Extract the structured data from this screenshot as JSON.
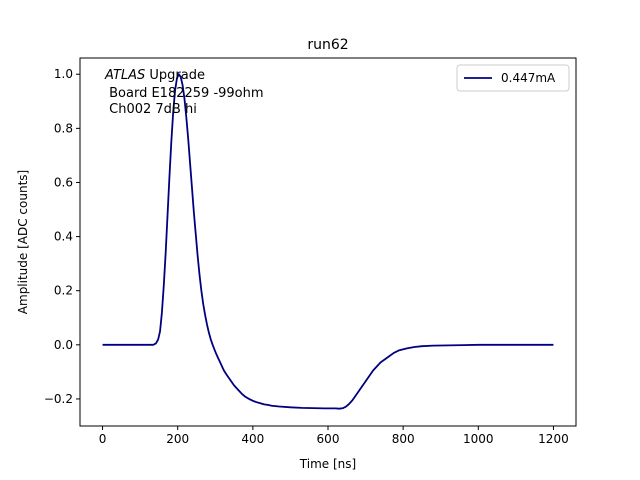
{
  "chart_data": {
    "type": "line",
    "title": "run62",
    "xlabel": "Time [ns]",
    "ylabel": "Amplitude [ADC counts]",
    "xlim": [
      -60,
      1260
    ],
    "ylim": [
      -0.3,
      1.06
    ],
    "xticks": [
      0,
      200,
      400,
      600,
      800,
      1000,
      1200
    ],
    "yticks": [
      -0.2,
      0.0,
      0.2,
      0.4,
      0.6,
      0.8,
      1.0
    ],
    "xtick_labels": [
      "0",
      "200",
      "400",
      "600",
      "800",
      "1000",
      "1200"
    ],
    "ytick_labels": [
      "−0.2",
      "0.0",
      "0.2",
      "0.4",
      "0.6",
      "0.8",
      "1.0"
    ],
    "grid": false,
    "legend_position": "top-right",
    "annotation": {
      "line1_italic": "ATLAS",
      "line1_rest": " Upgrade",
      "line2": " Board E182259 -99ohm",
      "line3": " Ch002 7dB hi"
    },
    "series": [
      {
        "name": "0.447mA",
        "color": "#000080",
        "x": [
          0,
          100,
          135,
          142,
          148,
          153,
          158,
          163,
          168,
          173,
          178,
          183,
          188,
          193,
          198,
          203,
          208,
          213,
          218,
          223,
          228,
          233,
          238,
          243,
          248,
          253,
          258,
          263,
          268,
          273,
          278,
          283,
          288,
          293,
          298,
          303,
          308,
          313,
          318,
          323,
          330,
          340,
          350,
          360,
          370,
          380,
          390,
          400,
          410,
          420,
          430,
          440,
          450,
          470,
          500,
          530,
          560,
          590,
          620,
          630,
          640,
          648,
          655,
          665,
          675,
          690,
          705,
          720,
          740,
          760,
          775,
          790,
          810,
          830,
          850,
          880,
          920,
          960,
          1000,
          1100,
          1200
        ],
        "y": [
          0.0,
          0.0,
          0.0,
          0.005,
          0.02,
          0.05,
          0.12,
          0.22,
          0.34,
          0.48,
          0.62,
          0.75,
          0.86,
          0.94,
          0.985,
          1.0,
          0.99,
          0.96,
          0.91,
          0.84,
          0.76,
          0.67,
          0.58,
          0.49,
          0.41,
          0.33,
          0.26,
          0.2,
          0.15,
          0.11,
          0.075,
          0.045,
          0.02,
          0.0,
          -0.018,
          -0.035,
          -0.05,
          -0.065,
          -0.08,
          -0.095,
          -0.11,
          -0.13,
          -0.15,
          -0.165,
          -0.18,
          -0.192,
          -0.2,
          -0.207,
          -0.212,
          -0.216,
          -0.22,
          -0.222,
          -0.225,
          -0.228,
          -0.231,
          -0.233,
          -0.234,
          -0.235,
          -0.235,
          -0.236,
          -0.234,
          -0.228,
          -0.22,
          -0.205,
          -0.185,
          -0.155,
          -0.125,
          -0.095,
          -0.065,
          -0.045,
          -0.03,
          -0.02,
          -0.013,
          -0.008,
          -0.005,
          -0.003,
          -0.002,
          -0.001,
          0.0,
          0.0,
          0.0
        ]
      }
    ]
  }
}
